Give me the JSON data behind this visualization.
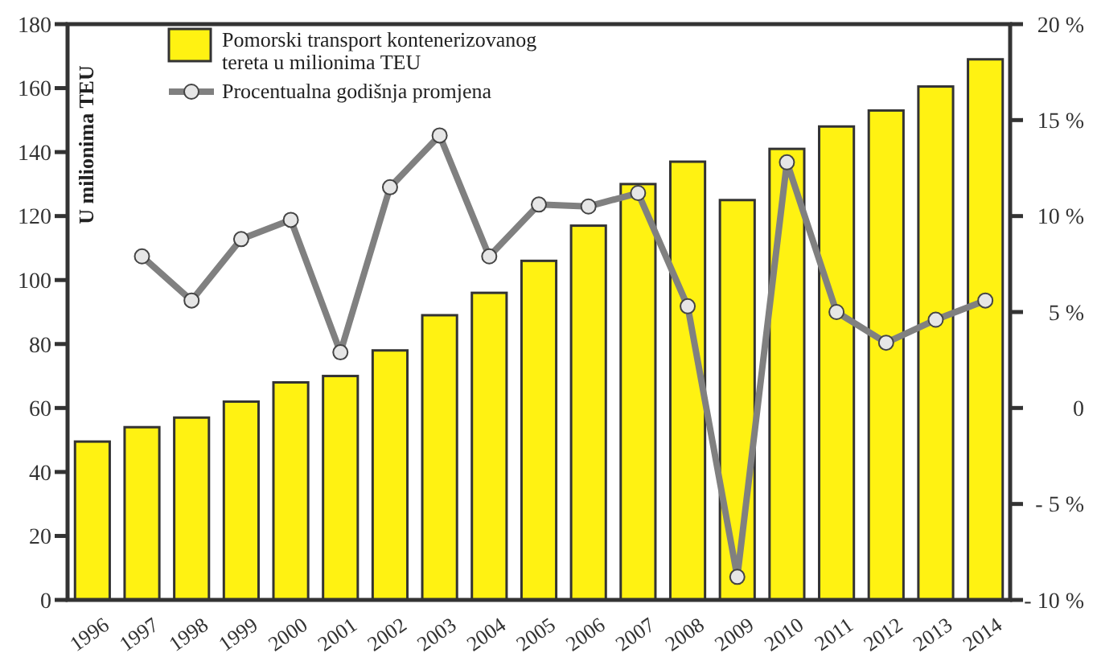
{
  "chart_data": {
    "type": "bar",
    "ylabel": "U milionima TEU",
    "categories": [
      "1996",
      "1997",
      "1998",
      "1999",
      "2000",
      "2001",
      "2002",
      "2003",
      "2004",
      "2005",
      "2006",
      "2007",
      "2008",
      "2009",
      "2010",
      "2011",
      "2012",
      "2013",
      "2014"
    ],
    "series": [
      {
        "name": "Pomorski transport kontenerizovanog tereta u milionima TEU",
        "color": "#fff212",
        "values": [
          49.5,
          54,
          57,
          62,
          68,
          70,
          78,
          89,
          96,
          106,
          117,
          130,
          137,
          125,
          141,
          148,
          153,
          160.5,
          169
        ]
      },
      {
        "name": "Procentualna godišnja promjena",
        "type": "line",
        "axis": "y2",
        "color": "#808080",
        "values": [
          null,
          7.9,
          5.6,
          8.8,
          9.8,
          2.9,
          11.5,
          14.2,
          7.9,
          10.6,
          10.5,
          11.2,
          5.3,
          -8.8,
          12.8,
          5.0,
          3.4,
          4.6,
          5.6
        ]
      }
    ],
    "ylim": [
      0,
      180
    ],
    "yticks": [
      0,
      20,
      40,
      60,
      80,
      100,
      120,
      140,
      160,
      180
    ],
    "y2lim": [
      -10,
      20
    ],
    "y2ticks": [
      {
        "value": -10,
        "label": "- 10 %"
      },
      {
        "value": -5,
        "label": "- 5 %"
      },
      0,
      {
        "value": 5,
        "label": "5 %"
      },
      {
        "value": 10,
        "label": "10 %"
      },
      {
        "value": 15,
        "label": "15 %"
      },
      {
        "value": 20,
        "label": "20 %"
      }
    ],
    "marker": "circle",
    "line_style": "solid",
    "legend": "top left",
    "grid": false
  }
}
